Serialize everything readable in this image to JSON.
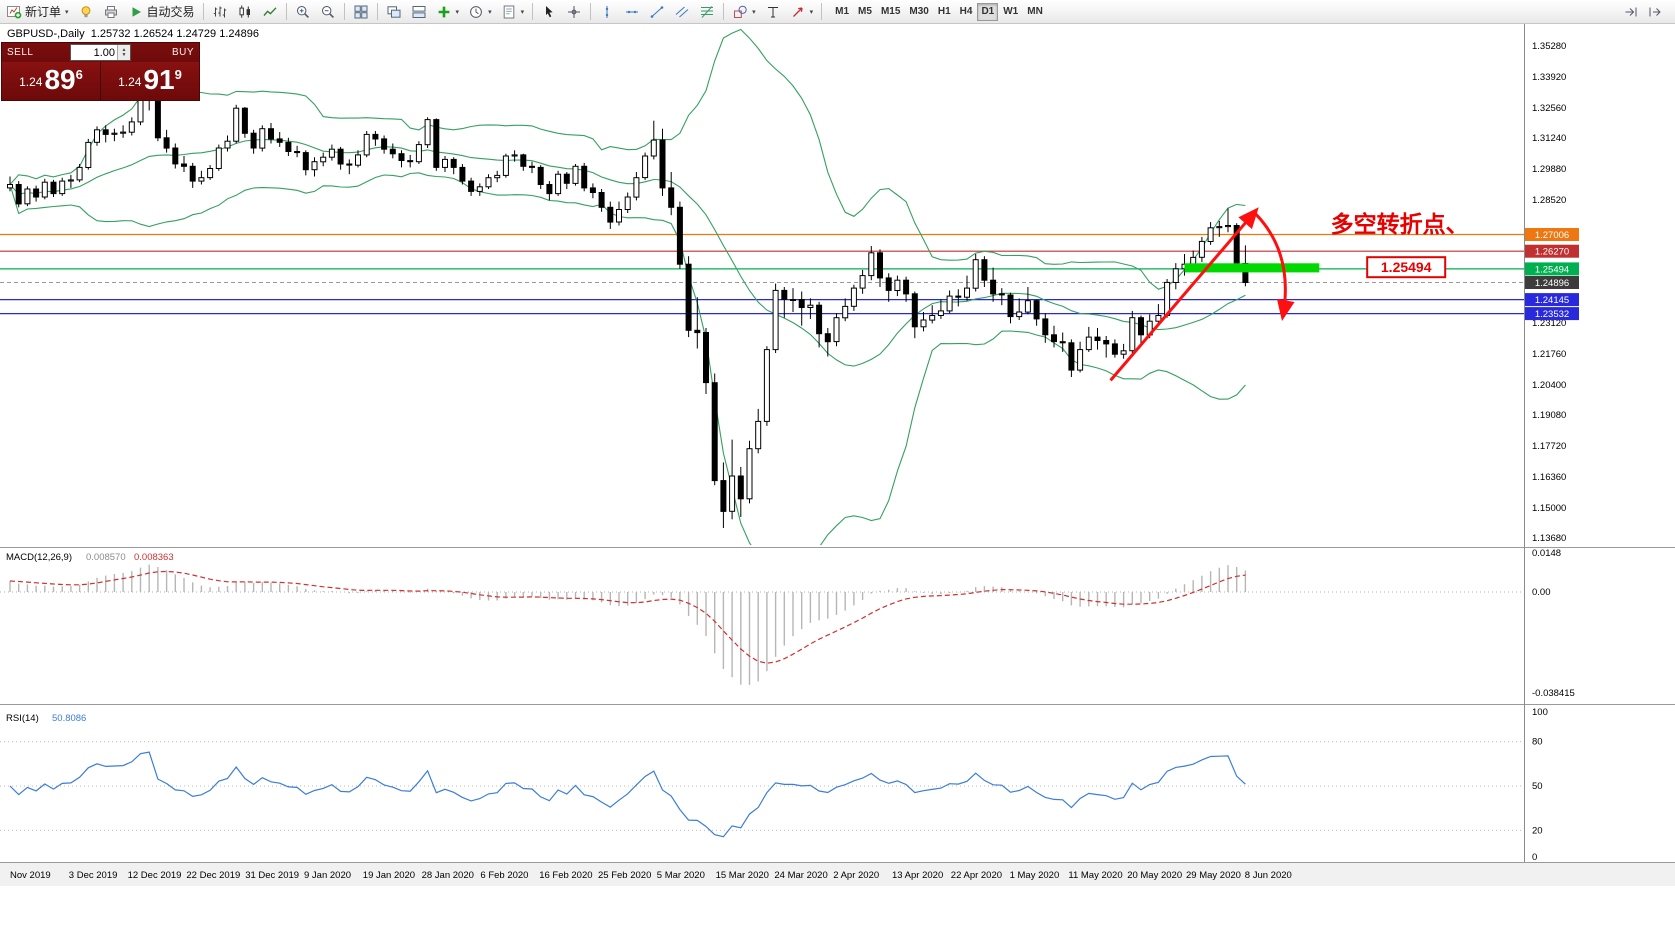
{
  "toolbar": {
    "items": [
      {
        "name": "new-order",
        "label": "新订单",
        "caret": true
      },
      {
        "name": "metaeditor"
      },
      {
        "name": "print"
      },
      {
        "name": "autotrading",
        "label": "自动交易"
      },
      {
        "sep": true
      },
      {
        "name": "bar-chart"
      },
      {
        "name": "candlestick-chart"
      },
      {
        "name": "line-chart"
      },
      {
        "sep": true
      },
      {
        "name": "zoom-in"
      },
      {
        "name": "zoom-out"
      },
      {
        "sep": true
      },
      {
        "name": "tile-windows"
      },
      {
        "sep": true
      },
      {
        "name": "arrange-left"
      },
      {
        "name": "arrange-right"
      },
      {
        "name": "indicators",
        "caret": true
      },
      {
        "name": "periods",
        "caret": true
      },
      {
        "name": "templates",
        "caret": true
      },
      {
        "sep": true
      },
      {
        "name": "cursor"
      },
      {
        "name": "crosshair"
      },
      {
        "sep": true
      },
      {
        "name": "vertical-line"
      },
      {
        "name": "horizontal-line"
      },
      {
        "name": "trendline"
      },
      {
        "name": "equidistant-channel"
      },
      {
        "name": "fibonacci"
      },
      {
        "sep": true
      },
      {
        "name": "shapes",
        "caret": true
      },
      {
        "name": "text-label"
      },
      {
        "name": "arrow-objects",
        "caret": true
      },
      {
        "sep": true
      }
    ],
    "timeframes": [
      "M1",
      "M5",
      "M15",
      "M30",
      "H1",
      "H4",
      "D1",
      "W1",
      "MN"
    ],
    "active_timeframe": "D1",
    "right_items": [
      {
        "name": "chart-scroll"
      },
      {
        "name": "chart-shift"
      }
    ]
  },
  "order_panel": {
    "sell_label": "SELL",
    "buy_label": "BUY",
    "volume": "1.00",
    "bid": {
      "small": "1.24",
      "big": "89",
      "sup": "6"
    },
    "ask": {
      "small": "1.24",
      "big": "91",
      "sup": "9"
    }
  },
  "chart_data": {
    "type": "candlestick",
    "symbol": "GBPUSD-",
    "timeframe": "Daily",
    "title": "GBPUSD-,Daily",
    "ohlc_text": "1.25732 1.26524 1.24729 1.24896",
    "candles": [
      [
        1.2905,
        1.2955,
        1.289,
        1.292
      ],
      [
        1.292,
        1.2935,
        1.282,
        1.2835
      ],
      [
        1.2835,
        1.2912,
        1.2825,
        1.29
      ],
      [
        1.29,
        1.2915,
        1.2845,
        1.2865
      ],
      [
        1.2865,
        1.2945,
        1.2855,
        1.293
      ],
      [
        1.293,
        1.294,
        1.2865,
        1.288
      ],
      [
        1.288,
        1.295,
        1.287,
        1.2935
      ],
      [
        1.2935,
        1.2962,
        1.2905,
        1.294
      ],
      [
        1.294,
        1.301,
        1.293,
        1.2995
      ],
      [
        1.2995,
        1.312,
        1.2985,
        1.3105
      ],
      [
        1.3105,
        1.3175,
        1.309,
        1.316
      ],
      [
        1.316,
        1.318,
        1.3105,
        1.314
      ],
      [
        1.314,
        1.3165,
        1.311,
        1.3145
      ],
      [
        1.3145,
        1.318,
        1.3125,
        1.315
      ],
      [
        1.315,
        1.3215,
        1.3135,
        1.3195
      ],
      [
        1.3195,
        1.334,
        1.318,
        1.331
      ],
      [
        1.331,
        1.335,
        1.3245,
        1.3335
      ],
      [
        1.3335,
        1.334,
        1.311,
        1.3125
      ],
      [
        1.3125,
        1.316,
        1.306,
        1.308
      ],
      [
        1.308,
        1.31,
        1.299,
        1.301
      ],
      [
        1.301,
        1.3045,
        1.2975,
        1.3
      ],
      [
        1.3,
        1.3015,
        1.2905,
        1.2935
      ],
      [
        1.2935,
        1.298,
        1.292,
        1.295
      ],
      [
        1.295,
        1.3005,
        1.294,
        1.299
      ],
      [
        1.299,
        1.3095,
        1.298,
        1.308
      ],
      [
        1.308,
        1.3135,
        1.3065,
        1.311
      ],
      [
        1.311,
        1.327,
        1.31,
        1.3255
      ],
      [
        1.3255,
        1.326,
        1.3125,
        1.3145
      ],
      [
        1.3145,
        1.316,
        1.3055,
        1.308
      ],
      [
        1.308,
        1.318,
        1.3065,
        1.3165
      ],
      [
        1.3165,
        1.319,
        1.31,
        1.312
      ],
      [
        1.312,
        1.315,
        1.3085,
        1.3105
      ],
      [
        1.3105,
        1.3125,
        1.3045,
        1.3065
      ],
      [
        1.3065,
        1.309,
        1.304,
        1.306
      ],
      [
        1.306,
        1.307,
        1.296,
        1.2985
      ],
      [
        1.2985,
        1.304,
        1.2955,
        1.302
      ],
      [
        1.302,
        1.306,
        1.3,
        1.304
      ],
      [
        1.304,
        1.3095,
        1.3025,
        1.3075
      ],
      [
        1.3075,
        1.3085,
        1.2985,
        1.301
      ],
      [
        1.301,
        1.303,
        1.2965,
        1.3005
      ],
      [
        1.3005,
        1.307,
        1.2995,
        1.305
      ],
      [
        1.305,
        1.3155,
        1.304,
        1.314
      ],
      [
        1.314,
        1.3155,
        1.309,
        1.312
      ],
      [
        1.312,
        1.3135,
        1.3055,
        1.3075
      ],
      [
        1.3075,
        1.31,
        1.3035,
        1.3055
      ],
      [
        1.3055,
        1.307,
        1.2995,
        1.3025
      ],
      [
        1.3025,
        1.305,
        1.2995,
        1.302
      ],
      [
        1.302,
        1.311,
        1.301,
        1.3095
      ],
      [
        1.3095,
        1.3215,
        1.308,
        1.3205
      ],
      [
        1.3205,
        1.321,
        1.298,
        1.2995
      ],
      [
        1.2995,
        1.3045,
        1.2975,
        1.303
      ],
      [
        1.303,
        1.304,
        1.2965,
        1.2995
      ],
      [
        1.2995,
        1.301,
        1.292,
        1.2935
      ],
      [
        1.2935,
        1.295,
        1.287,
        1.289
      ],
      [
        1.289,
        1.2925,
        1.287,
        1.291
      ],
      [
        1.291,
        1.2965,
        1.29,
        1.295
      ],
      [
        1.295,
        1.298,
        1.293,
        1.296
      ],
      [
        1.296,
        1.3055,
        1.295,
        1.3045
      ],
      [
        1.3045,
        1.307,
        1.302,
        1.305
      ],
      [
        1.305,
        1.3055,
        1.298,
        1.3
      ],
      [
        1.3,
        1.302,
        1.297,
        1.2995
      ],
      [
        1.2995,
        1.3005,
        1.29,
        1.292
      ],
      [
        1.292,
        1.2935,
        1.285,
        1.288
      ],
      [
        1.288,
        1.298,
        1.287,
        1.2965
      ],
      [
        1.2965,
        1.2975,
        1.29,
        1.2925
      ],
      [
        1.2925,
        1.301,
        1.2915,
        1.3
      ],
      [
        1.3,
        1.3015,
        1.289,
        1.2905
      ],
      [
        1.2905,
        1.2925,
        1.286,
        1.2885
      ],
      [
        1.2885,
        1.29,
        1.28,
        1.282
      ],
      [
        1.282,
        1.2845,
        1.2725,
        1.2755
      ],
      [
        1.2755,
        1.2845,
        1.274,
        1.281
      ],
      [
        1.281,
        1.2885,
        1.2795,
        1.2865
      ],
      [
        1.2865,
        1.2975,
        1.285,
        1.295
      ],
      [
        1.295,
        1.306,
        1.294,
        1.3045
      ],
      [
        1.3045,
        1.32,
        1.303,
        1.3115
      ],
      [
        1.3115,
        1.3165,
        1.287,
        1.2905
      ],
      [
        1.2905,
        1.2975,
        1.2785,
        1.282
      ],
      [
        1.282,
        1.2845,
        1.255,
        1.257
      ],
      [
        1.257,
        1.2605,
        1.225,
        1.228
      ],
      [
        1.228,
        1.2425,
        1.22,
        1.227
      ],
      [
        1.227,
        1.229,
        1.2,
        1.205
      ],
      [
        1.205,
        1.209,
        1.16,
        1.162
      ],
      [
        1.162,
        1.17,
        1.1412,
        1.1485
      ],
      [
        1.1485,
        1.18,
        1.145,
        1.164
      ],
      [
        1.164,
        1.168,
        1.146,
        1.154
      ],
      [
        1.154,
        1.1795,
        1.152,
        1.176
      ],
      [
        1.176,
        1.1935,
        1.174,
        1.188
      ],
      [
        1.188,
        1.221,
        1.186,
        1.2195
      ],
      [
        1.2195,
        1.2485,
        1.218,
        1.2455
      ],
      [
        1.2455,
        1.247,
        1.2335,
        1.2415
      ],
      [
        1.2415,
        1.2465,
        1.236,
        1.2415
      ],
      [
        1.2415,
        1.245,
        1.23,
        1.238
      ],
      [
        1.238,
        1.242,
        1.233,
        1.239
      ],
      [
        1.239,
        1.2405,
        1.2205,
        1.2265
      ],
      [
        1.2265,
        1.229,
        1.2165,
        1.223
      ],
      [
        1.223,
        1.2355,
        1.221,
        1.2335
      ],
      [
        1.2335,
        1.242,
        1.232,
        1.2385
      ],
      [
        1.2385,
        1.248,
        1.2365,
        1.2465
      ],
      [
        1.2465,
        1.2545,
        1.244,
        1.252
      ],
      [
        1.252,
        1.265,
        1.25,
        1.262
      ],
      [
        1.262,
        1.2635,
        1.247,
        1.251
      ],
      [
        1.251,
        1.253,
        1.2405,
        1.2455
      ],
      [
        1.2455,
        1.252,
        1.243,
        1.25
      ],
      [
        1.25,
        1.2515,
        1.2405,
        1.244
      ],
      [
        1.244,
        1.245,
        1.2245,
        1.2295
      ],
      [
        1.2295,
        1.236,
        1.2275,
        1.2325
      ],
      [
        1.2325,
        1.239,
        1.231,
        1.2345
      ],
      [
        1.2345,
        1.2415,
        1.233,
        1.2365
      ],
      [
        1.2365,
        1.2455,
        1.2355,
        1.243
      ],
      [
        1.243,
        1.246,
        1.2385,
        1.2425
      ],
      [
        1.2425,
        1.252,
        1.241,
        1.2465
      ],
      [
        1.2465,
        1.2615,
        1.245,
        1.259
      ],
      [
        1.259,
        1.2605,
        1.247,
        1.25
      ],
      [
        1.25,
        1.2555,
        1.2405,
        1.244
      ],
      [
        1.244,
        1.2465,
        1.239,
        1.2435
      ],
      [
        1.2435,
        1.2445,
        1.231,
        1.234
      ],
      [
        1.234,
        1.242,
        1.2325,
        1.236
      ],
      [
        1.236,
        1.247,
        1.235,
        1.241
      ],
      [
        1.241,
        1.2415,
        1.23,
        1.233
      ],
      [
        1.233,
        1.2355,
        1.2225,
        1.226
      ],
      [
        1.226,
        1.23,
        1.2205,
        1.223
      ],
      [
        1.223,
        1.227,
        1.2185,
        1.2225
      ],
      [
        1.2225,
        1.224,
        1.2075,
        1.2105
      ],
      [
        1.2105,
        1.223,
        1.2095,
        1.2195
      ],
      [
        1.2195,
        1.2295,
        1.2185,
        1.225
      ],
      [
        1.225,
        1.229,
        1.2195,
        1.2235
      ],
      [
        1.2235,
        1.2255,
        1.216,
        1.222
      ],
      [
        1.222,
        1.224,
        1.216,
        1.2175
      ],
      [
        1.2175,
        1.222,
        1.2155,
        1.219
      ],
      [
        1.219,
        1.2365,
        1.218,
        1.2335
      ],
      [
        1.2335,
        1.2345,
        1.222,
        1.226
      ],
      [
        1.226,
        1.235,
        1.2245,
        1.232
      ],
      [
        1.232,
        1.2395,
        1.23,
        1.2345
      ],
      [
        1.2345,
        1.2505,
        1.2335,
        1.249
      ],
      [
        1.249,
        1.2575,
        1.246,
        1.255
      ],
      [
        1.255,
        1.2615,
        1.252,
        1.257
      ],
      [
        1.257,
        1.263,
        1.2545,
        1.26
      ],
      [
        1.26,
        1.269,
        1.258,
        1.267
      ],
      [
        1.267,
        1.2755,
        1.2655,
        1.273
      ],
      [
        1.273,
        1.276,
        1.269,
        1.2735
      ],
      [
        1.2735,
        1.2815,
        1.271,
        1.274
      ],
      [
        1.274,
        1.275,
        1.2545,
        1.2573
      ],
      [
        1.25732,
        1.26524,
        1.24729,
        1.24896
      ]
    ],
    "x_tick_labels": [
      "Nov 2019",
      "3 Dec 2019",
      "12 Dec 2019",
      "22 Dec 2019",
      "31 Dec 2019",
      "9 Jan 2020",
      "19 Jan 2020",
      "28 Jan 2020",
      "6 Feb 2020",
      "16 Feb 2020",
      "25 Feb 2020",
      "5 Mar 2020",
      "15 Mar 2020",
      "24 Mar 2020",
      "2 Apr 2020",
      "13 Apr 2020",
      "22 Apr 2020",
      "1 May 2020",
      "11 May 2020",
      "20 May 2020",
      "29 May 2020",
      "8 Jun 2020"
    ],
    "y_axis_labels": [
      "1.35280",
      "1.33920",
      "1.32560",
      "1.31240",
      "1.29880",
      "1.28520",
      "1.23120",
      "1.21760",
      "1.20400",
      "1.19080",
      "1.17720",
      "1.16360",
      "1.15000",
      "1.13680"
    ],
    "price_levels": [
      {
        "label": "1.27006",
        "price": 1.27006,
        "color": "#ee7711"
      },
      {
        "label": "1.26270",
        "price": 1.2627,
        "color": "#c03030"
      },
      {
        "label": "1.25494",
        "price": 1.25494,
        "color": "#00b050"
      },
      {
        "label": "1.24145",
        "price": 1.24145,
        "color": "#2828dc"
      },
      {
        "label": "1.23532",
        "price": 1.23532,
        "color": "#2828dc"
      }
    ],
    "current_price": {
      "label": "1.24896",
      "price": 1.24896,
      "tag_color": "#3c3c3c"
    },
    "overlays": {
      "bollinger": {
        "period": 20,
        "deviation": 2,
        "color": "#35a060"
      }
    },
    "indicators": [
      {
        "type": "macd",
        "name_label": "MACD(12,26,9)",
        "values": [
          "0.008570",
          "0.008363"
        ],
        "axis_labels": [
          "0.0148",
          "0.00",
          "-0.038415"
        ],
        "histogram_color": "#b6b6b6",
        "signal_color": "#d03030"
      },
      {
        "type": "rsi",
        "name_label": "RSI(14)",
        "values": [
          "50.8086"
        ],
        "axis_labels": [
          "100",
          "80",
          "50",
          "20",
          "0"
        ],
        "levels": [
          80,
          50,
          20
        ],
        "line_color": "#3b7dd8"
      }
    ],
    "annotations": {
      "note": {
        "text": "多空转折点、",
        "color": "#e60000",
        "bar": 151.8,
        "price": 1.2712
      },
      "callout": {
        "text": "1.25494",
        "color": "#e60000",
        "bar": 156,
        "price": 1.2557
      },
      "band": {
        "bar_start": 135,
        "bar_end": 150.5,
        "price_top": 1.2574,
        "price_bottom": 1.2534,
        "color": "#00d800"
      },
      "up_arrow": {
        "from_bar": 126.5,
        "from_price": 1.206,
        "to_bar": 143.2,
        "to_price": 1.2805,
        "color": "#ff1010"
      },
      "down_arrow": {
        "from_bar": 143.2,
        "from_price": 1.279,
        "ctrl_bar": 147.6,
        "ctrl_price": 1.2615,
        "to_bar": 146.3,
        "to_price": 1.234,
        "color": "#ff1010"
      }
    }
  }
}
